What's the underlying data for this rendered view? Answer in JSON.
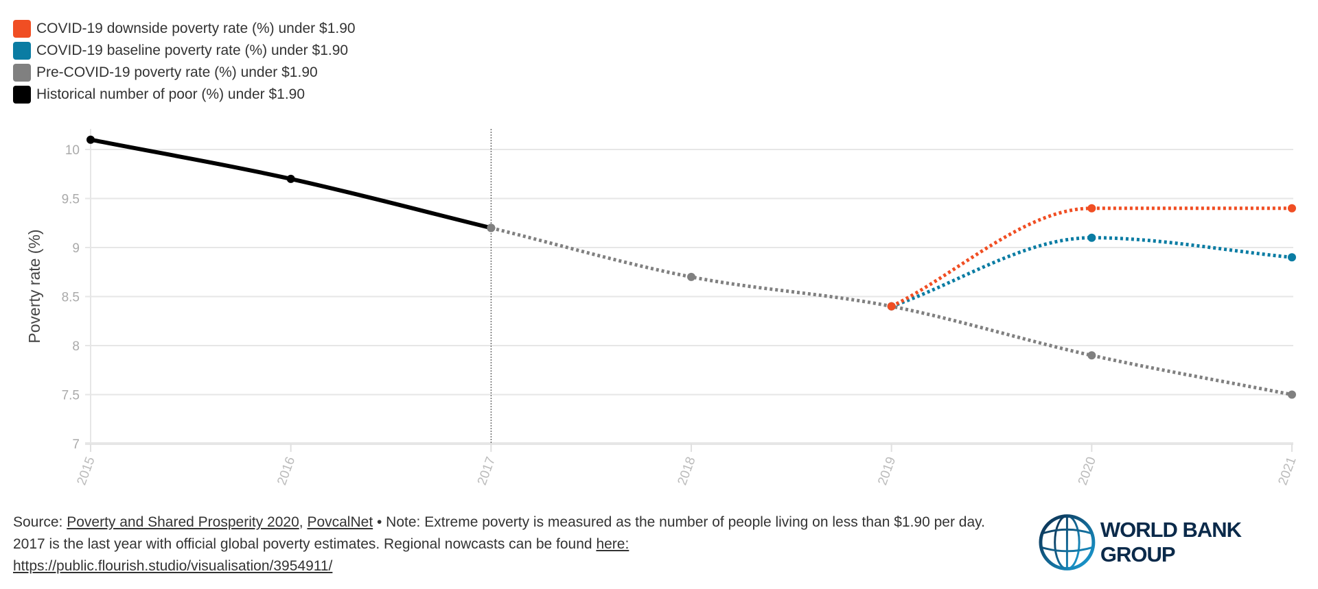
{
  "chart_data": {
    "type": "line",
    "title": "",
    "xlabel": "",
    "ylabel": "Poverty rate (%)",
    "x": [
      2015,
      2016,
      2017,
      2018,
      2019,
      2020,
      2021
    ],
    "x_tick_labels": [
      "2015",
      "2016",
      "2017",
      "2018",
      "2019",
      "2020",
      "2021"
    ],
    "ylim": [
      7,
      10
    ],
    "y_ticks": [
      7,
      7.5,
      8,
      8.5,
      9,
      9.5,
      10
    ],
    "y_tick_labels": [
      "7",
      "7.5",
      "8",
      "8.5",
      "9",
      "9.5",
      "10"
    ],
    "grid": true,
    "legend_position": "top-left",
    "annotations": [
      {
        "type": "vertical-dotted-line",
        "x": 2017
      }
    ],
    "series": [
      {
        "name": "COVID-19 downside poverty rate (%) under $1.90",
        "color": "#f04e23",
        "style": "dotted",
        "points": [
          [
            2019,
            8.4
          ],
          [
            2020,
            9.4
          ],
          [
            2021,
            9.4
          ]
        ]
      },
      {
        "name": "COVID-19 baseline poverty rate (%) under $1.90",
        "color": "#0a7ca3",
        "style": "dotted",
        "points": [
          [
            2019,
            8.4
          ],
          [
            2020,
            9.1
          ],
          [
            2021,
            8.9
          ]
        ]
      },
      {
        "name": "Pre-COVID-19 poverty rate (%) under $1.90",
        "color": "#808080",
        "style": "dotted",
        "points": [
          [
            2017,
            9.2
          ],
          [
            2018,
            8.7
          ],
          [
            2019,
            8.4
          ],
          [
            2020,
            7.9
          ],
          [
            2021,
            7.5
          ]
        ]
      },
      {
        "name": "Historical number of poor (%) under $1.90",
        "color": "#000000",
        "style": "solid",
        "points": [
          [
            2015,
            10.1
          ],
          [
            2016,
            9.7
          ],
          [
            2017,
            9.2
          ]
        ]
      }
    ]
  },
  "footer": {
    "source_prefix": "Source: ",
    "link1": "Poverty and Shared Prosperity 2020",
    "sep": ", ",
    "link2": "PovcalNet",
    "note": " • Note: Extreme poverty is measured as the number of people living on less than $1.90 per day. 2017 is the last year with official global poverty estimates. Regional nowcasts can be found ",
    "link3": "here:",
    "link4": "https://public.flourish.studio/visualisation/3954911/"
  },
  "logo": {
    "text": "WORLD BANK GROUP"
  }
}
